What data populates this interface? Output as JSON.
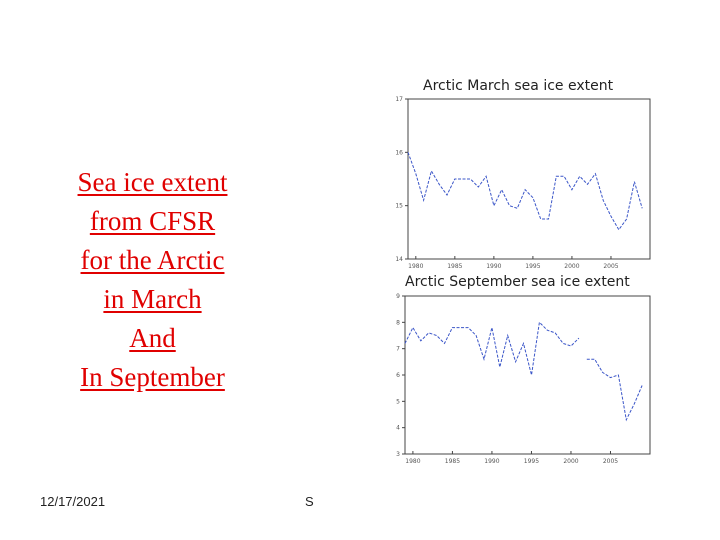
{
  "slide": {
    "lines": [
      "Sea ice extent",
      "from CFSR",
      "for the Arctic",
      "in March",
      "And",
      "In September"
    ],
    "date": "12/17/2021",
    "page_number": "S"
  },
  "colors": {
    "text": "#e00000",
    "series": "#3a55c8"
  },
  "chart_data": [
    {
      "type": "line",
      "title": "Arctic March sea ice extent",
      "xlim": [
        1979,
        2010
      ],
      "xticks": [
        "1980",
        "1985",
        "1990",
        "1995",
        "2000",
        "2005"
      ],
      "ylim": [
        14,
        17
      ],
      "yticks": [
        "14",
        "15",
        "16",
        "17"
      ],
      "x": [
        1979,
        1980,
        1981,
        1982,
        1983,
        1984,
        1985,
        1986,
        1987,
        1988,
        1989,
        1990,
        1991,
        1992,
        1993,
        1994,
        1995,
        1996,
        1997,
        1998,
        1999,
        2000,
        2001,
        2002,
        2003,
        2004,
        2005,
        2006,
        2007,
        2008,
        2009
      ],
      "values": [
        16.0,
        15.6,
        15.1,
        15.65,
        15.4,
        15.2,
        15.5,
        15.5,
        15.5,
        15.35,
        15.55,
        15.0,
        15.3,
        15.0,
        14.95,
        15.3,
        15.15,
        14.75,
        14.75,
        15.55,
        15.55,
        15.3,
        15.55,
        15.4,
        15.6,
        15.1,
        14.8,
        14.55,
        14.75,
        15.45,
        14.95
      ],
      "grid": false
    },
    {
      "type": "line",
      "title": "Arctic September sea ice extent",
      "xlim": [
        1979,
        2010
      ],
      "xticks": [
        "1980",
        "1985",
        "1990",
        "1995",
        "2000",
        "2005"
      ],
      "ylim": [
        3,
        9
      ],
      "yticks": [
        "3",
        "4",
        "5",
        "6",
        "7",
        "8",
        "9"
      ],
      "x": [
        1979,
        1980,
        1981,
        1982,
        1983,
        1984,
        1985,
        1986,
        1987,
        1988,
        1989,
        1990,
        1991,
        1992,
        1993,
        1994,
        1995,
        1996,
        1997,
        1998,
        1999,
        2000,
        2001,
        2002,
        2003,
        2004,
        2005,
        2006,
        2007,
        2008,
        2009
      ],
      "values": [
        7.2,
        7.8,
        7.3,
        7.6,
        7.5,
        7.2,
        7.8,
        7.8,
        7.8,
        7.5,
        6.6,
        7.8,
        6.3,
        7.5,
        6.5,
        7.2,
        6.0,
        8.0,
        7.7,
        7.6,
        7.2,
        7.1,
        7.4,
        6.6,
        6.6,
        6.1,
        5.9,
        6.0,
        4.3,
        4.9,
        5.6
      ],
      "gap_indices": [
        23
      ],
      "grid": false
    }
  ]
}
